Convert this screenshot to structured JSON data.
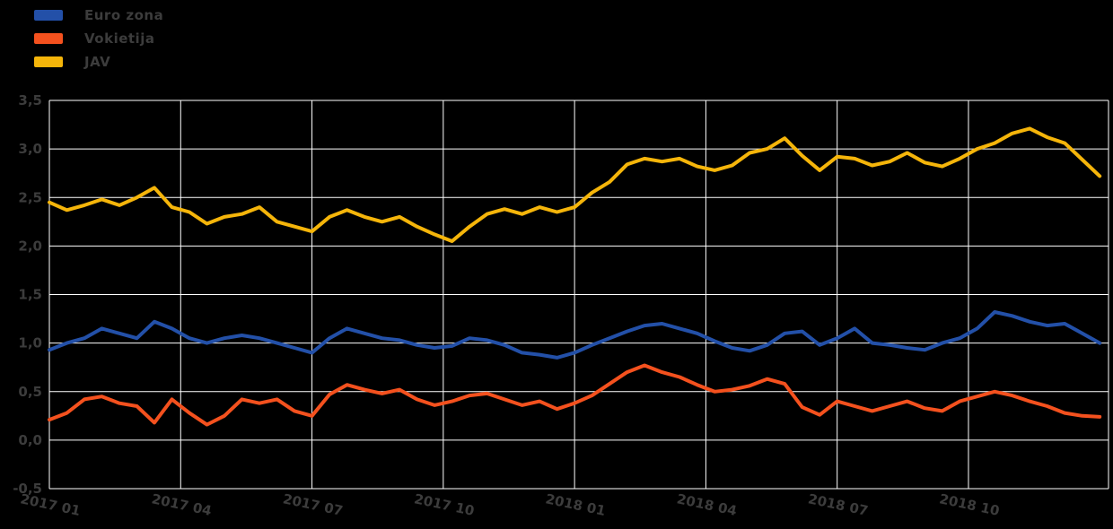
{
  "page": {
    "background": "#000000",
    "grid_color": "#ffffff",
    "tick_text_color": "#3c3c3c"
  },
  "legend": [
    {
      "label": "Euro zona",
      "color": "#2350a8"
    },
    {
      "label": "Vokietija",
      "color": "#f4511e"
    },
    {
      "label": "JAV",
      "color": "#f5b50a"
    }
  ],
  "chart_data": {
    "type": "line",
    "title": "",
    "xlabel": "",
    "ylabel": "",
    "grid": true,
    "legend_position": "upper left",
    "ylim": [
      -0.5,
      3.5
    ],
    "xlim": [
      0,
      24.2
    ],
    "x_unit": "months since 2017-01",
    "y_ticks": [
      {
        "v": 3.5,
        "label": "3,5"
      },
      {
        "v": 3.0,
        "label": "3,0"
      },
      {
        "v": 2.5,
        "label": "2,5"
      },
      {
        "v": 2.0,
        "label": "2,0"
      },
      {
        "v": 1.5,
        "label": "1,5"
      },
      {
        "v": 1.0,
        "label": "1,0"
      },
      {
        "v": 0.5,
        "label": "0,5"
      },
      {
        "v": 0.0,
        "label": "0,0"
      },
      {
        "v": -0.5,
        "label": "-0,5"
      }
    ],
    "x_ticks": [
      {
        "t": 0,
        "label": "2017 01"
      },
      {
        "t": 3,
        "label": "2017 04"
      },
      {
        "t": 6,
        "label": "2017 07"
      },
      {
        "t": 9,
        "label": "2017 10"
      },
      {
        "t": 12,
        "label": "2018 01"
      },
      {
        "t": 15,
        "label": "2018 04"
      },
      {
        "t": 18,
        "label": "2018 07"
      },
      {
        "t": 21,
        "label": "2018 10"
      }
    ],
    "x": [
      0,
      0.4,
      0.8,
      1.2,
      1.6,
      2,
      2.4,
      2.8,
      3.2,
      3.6,
      4,
      4.4,
      4.8,
      5.2,
      5.6,
      6,
      6.4,
      6.8,
      7.2,
      7.6,
      8,
      8.4,
      8.8,
      9.2,
      9.6,
      10,
      10.4,
      10.8,
      11.2,
      11.6,
      12,
      12.4,
      12.8,
      13.2,
      13.6,
      14,
      14.4,
      14.8,
      15.2,
      15.6,
      16,
      16.4,
      16.8,
      17.2,
      17.6,
      18,
      18.4,
      18.8,
      19.2,
      19.6,
      20,
      20.4,
      20.8,
      21.2,
      21.6,
      22,
      22.4,
      22.8,
      23.2,
      23.6,
      24
    ],
    "series": [
      {
        "name": "Euro zona",
        "color": "#2350a8",
        "values": [
          0.93,
          1.0,
          1.05,
          1.15,
          1.1,
          1.05,
          1.22,
          1.15,
          1.05,
          1.0,
          1.05,
          1.08,
          1.05,
          1.0,
          0.95,
          0.9,
          1.05,
          1.15,
          1.1,
          1.05,
          1.03,
          0.98,
          0.95,
          0.97,
          1.05,
          1.03,
          0.98,
          0.9,
          0.88,
          0.85,
          0.9,
          0.98,
          1.05,
          1.12,
          1.18,
          1.2,
          1.15,
          1.1,
          1.02,
          0.95,
          0.92,
          0.98,
          1.1,
          1.12,
          0.98,
          1.05,
          1.15,
          1.0,
          0.98,
          0.95,
          0.93,
          1.0,
          1.05,
          1.15,
          1.32,
          1.28,
          1.22,
          1.18,
          1.2,
          1.1,
          1.0
        ]
      },
      {
        "name": "Vokietija",
        "color": "#f4511e",
        "values": [
          0.21,
          0.28,
          0.42,
          0.45,
          0.38,
          0.35,
          0.18,
          0.42,
          0.28,
          0.16,
          0.25,
          0.42,
          0.38,
          0.42,
          0.3,
          0.25,
          0.47,
          0.57,
          0.52,
          0.48,
          0.52,
          0.42,
          0.36,
          0.4,
          0.46,
          0.48,
          0.42,
          0.36,
          0.4,
          0.32,
          0.38,
          0.46,
          0.58,
          0.7,
          0.77,
          0.7,
          0.65,
          0.57,
          0.5,
          0.52,
          0.56,
          0.63,
          0.58,
          0.34,
          0.26,
          0.4,
          0.35,
          0.3,
          0.35,
          0.4,
          0.33,
          0.3,
          0.4,
          0.45,
          0.5,
          0.46,
          0.4,
          0.35,
          0.28,
          0.25,
          0.24
        ]
      },
      {
        "name": "JAV",
        "color": "#f5b50a",
        "values": [
          2.45,
          2.37,
          2.42,
          2.48,
          2.42,
          2.5,
          2.6,
          2.4,
          2.35,
          2.23,
          2.3,
          2.33,
          2.4,
          2.25,
          2.2,
          2.15,
          2.3,
          2.37,
          2.3,
          2.25,
          2.3,
          2.2,
          2.12,
          2.05,
          2.2,
          2.33,
          2.38,
          2.33,
          2.4,
          2.35,
          2.4,
          2.55,
          2.66,
          2.84,
          2.9,
          2.87,
          2.9,
          2.82,
          2.78,
          2.83,
          2.96,
          3.0,
          3.11,
          2.93,
          2.78,
          2.92,
          2.9,
          2.83,
          2.87,
          2.96,
          2.86,
          2.82,
          2.9,
          3.0,
          3.06,
          3.16,
          3.21,
          3.12,
          3.06,
          2.89,
          2.72
        ]
      }
    ]
  }
}
